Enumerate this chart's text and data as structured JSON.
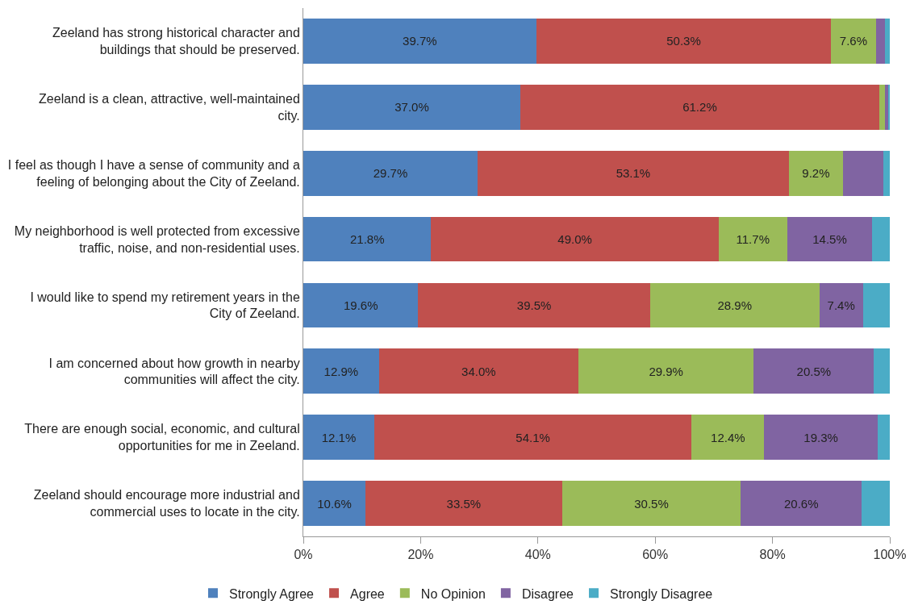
{
  "chart_data": {
    "type": "bar",
    "orientation": "horizontal",
    "stacked": true,
    "categories": [
      "Zeeland has strong historical character and buildings that should be preserved.",
      "Zeeland is a clean, attractive, well-maintained city.",
      "I feel as though I have a sense of community and a feeling of belonging about the City of Zeeland.",
      "My neighborhood is well protected from excessive traffic, noise, and non-residential uses.",
      "I would like to spend my retirement years in the City of Zeeland.",
      "I am concerned about how growth in nearby communities will affect the city.",
      "There are enough social, economic, and cultural opportunities for me in Zeeland.",
      "Zeeland should encourage more industrial and commercial uses to locate in the city."
    ],
    "series": [
      {
        "name": "Strongly Agree",
        "color": "#4f81bd",
        "values": [
          39.7,
          37.0,
          29.7,
          21.8,
          19.6,
          12.9,
          12.1,
          10.6
        ],
        "value_labels": [
          "39.7%",
          "37.0%",
          "29.7%",
          "21.8%",
          "19.6%",
          "12.9%",
          "12.1%",
          "10.6%"
        ]
      },
      {
        "name": "Agree",
        "color": "#c0504d",
        "values": [
          50.3,
          61.2,
          53.1,
          49.0,
          39.5,
          34.0,
          54.1,
          33.5
        ],
        "value_labels": [
          "50.3%",
          "61.2%",
          "53.1%",
          "49.0%",
          "39.5%",
          "34.0%",
          "54.1%",
          "33.5%"
        ]
      },
      {
        "name": "No Opinion",
        "color": "#9bbb59",
        "values": [
          7.6,
          1.0,
          9.2,
          11.7,
          28.9,
          29.9,
          12.4,
          30.5
        ],
        "value_labels": [
          "7.6%",
          null,
          "9.2%",
          "11.7%",
          "28.9%",
          "29.9%",
          "12.4%",
          "30.5%"
        ]
      },
      {
        "name": "Disagree",
        "color": "#8064a2",
        "values": [
          1.6,
          0.6,
          6.9,
          14.5,
          7.4,
          20.5,
          19.3,
          20.6
        ],
        "value_labels": [
          null,
          null,
          null,
          "14.5%",
          "7.4%",
          "20.5%",
          "19.3%",
          "20.6%"
        ]
      },
      {
        "name": "Strongly Disagree",
        "color": "#4bacc6",
        "values": [
          0.8,
          0.2,
          1.1,
          3.0,
          4.6,
          2.7,
          2.1,
          4.8
        ],
        "value_labels": [
          null,
          null,
          null,
          null,
          null,
          null,
          null,
          null
        ]
      }
    ],
    "xlim": [
      0,
      100
    ],
    "xticks": [
      {
        "value": 0,
        "label": "0%"
      },
      {
        "value": 20,
        "label": "20%"
      },
      {
        "value": 40,
        "label": "40%"
      },
      {
        "value": 60,
        "label": "60%"
      },
      {
        "value": 80,
        "label": "80%"
      },
      {
        "value": 100,
        "label": "100%"
      }
    ],
    "grid": false,
    "legend": "bottom"
  }
}
